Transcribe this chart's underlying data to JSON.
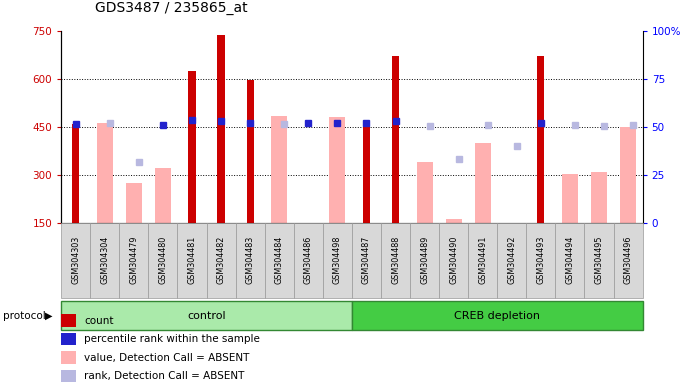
{
  "title": "GDS3487 / 235865_at",
  "samples": [
    "GSM304303",
    "GSM304304",
    "GSM304479",
    "GSM304480",
    "GSM304481",
    "GSM304482",
    "GSM304483",
    "GSM304484",
    "GSM304486",
    "GSM304498",
    "GSM304487",
    "GSM304488",
    "GSM304489",
    "GSM304490",
    "GSM304491",
    "GSM304492",
    "GSM304493",
    "GSM304494",
    "GSM304495",
    "GSM304496"
  ],
  "n_control": 10,
  "n_creb": 10,
  "count_values": [
    460,
    0,
    0,
    0,
    625,
    738,
    595,
    0,
    0,
    0,
    460,
    670,
    0,
    0,
    0,
    0,
    670,
    0,
    0,
    0
  ],
  "percentile_vals": [
    460,
    0,
    0,
    455,
    472,
    467,
    462,
    0,
    462,
    462,
    462,
    467,
    0,
    0,
    0,
    0,
    462,
    0,
    0,
    0
  ],
  "absent_value": [
    0,
    462,
    275,
    320,
    0,
    0,
    0,
    482,
    0,
    480,
    0,
    0,
    340,
    162,
    400,
    0,
    0,
    302,
    308,
    450
  ],
  "absent_rank": [
    0,
    462,
    340,
    0,
    0,
    0,
    0,
    460,
    0,
    0,
    0,
    0,
    452,
    350,
    455,
    390,
    0,
    455,
    453,
    455
  ],
  "ymin": 150,
  "ymax": 750,
  "yticks_left": [
    150,
    300,
    450,
    600,
    750
  ],
  "yticks_right": [
    0,
    25,
    50,
    75,
    100
  ],
  "grid_lines": [
    300,
    450,
    600
  ],
  "red_color": "#cc0000",
  "blue_color": "#2222cc",
  "pink_color": "#ffb0b0",
  "lavender_color": "#b8b8e0",
  "ctrl_color": "#aaeaaa",
  "creb_color": "#44cc44",
  "legend_items": [
    {
      "color": "#cc0000",
      "marker": "rect",
      "label": "count"
    },
    {
      "color": "#2222cc",
      "marker": "rect",
      "label": "percentile rank within the sample"
    },
    {
      "color": "#ffb0b0",
      "marker": "rect",
      "label": "value, Detection Call = ABSENT"
    },
    {
      "color": "#b8b8e0",
      "marker": "rect",
      "label": "rank, Detection Call = ABSENT"
    }
  ]
}
